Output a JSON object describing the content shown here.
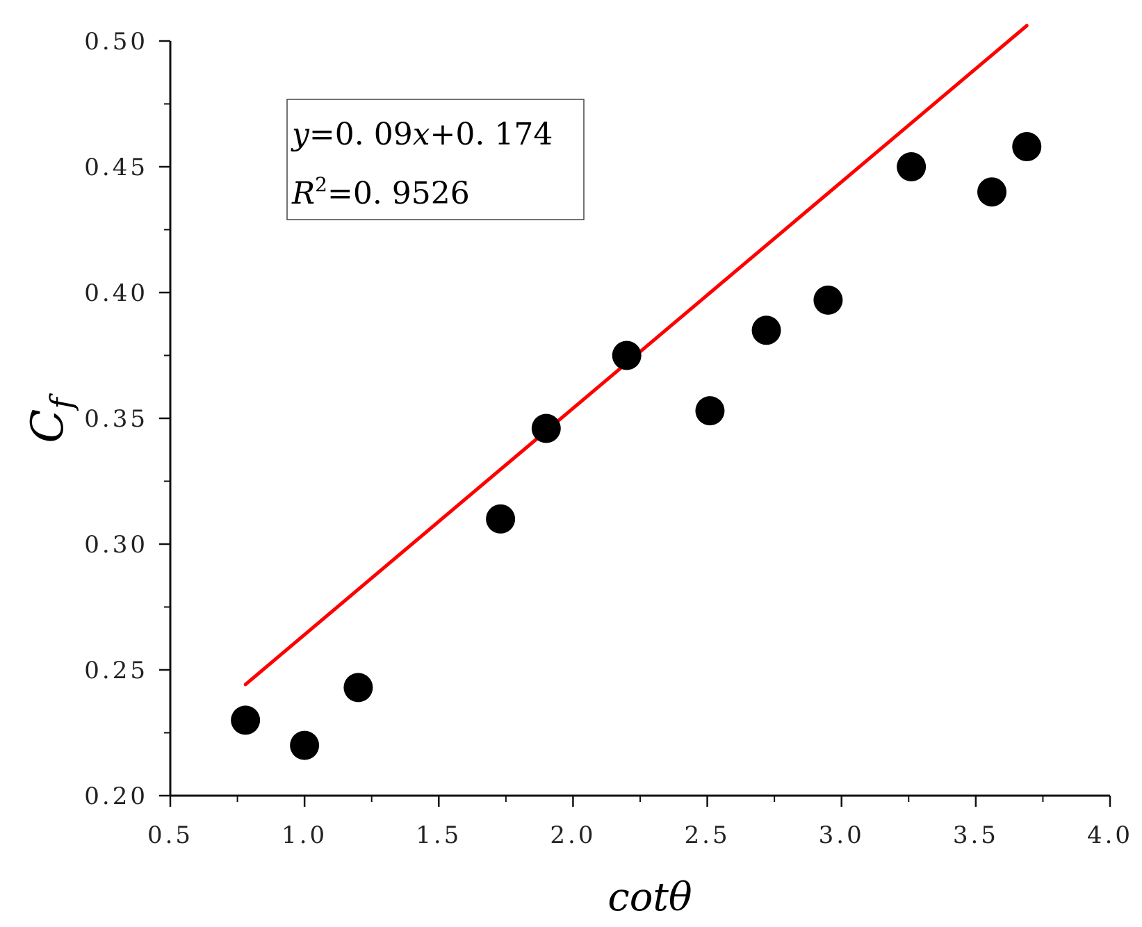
{
  "chart_data": {
    "type": "scatter",
    "xlabel": "cotθ",
    "ylabel": {
      "main": "C",
      "sub": "f"
    },
    "xlim": [
      0.5,
      4.0
    ],
    "ylim": [
      0.2,
      0.5
    ],
    "xticks": [
      "0.5",
      "1.0",
      "1.5",
      "2.0",
      "2.5",
      "3.0",
      "3.5",
      "4.0"
    ],
    "yticks": [
      "0.20",
      "0.25",
      "0.30",
      "0.35",
      "0.40",
      "0.45",
      "0.50"
    ],
    "xtick_values": [
      0.5,
      1.0,
      1.5,
      2.0,
      2.5,
      3.0,
      3.5,
      4.0
    ],
    "ytick_values": [
      0.2,
      0.25,
      0.3,
      0.35,
      0.4,
      0.45,
      0.5
    ],
    "series": [
      {
        "x": [
          0.78,
          1.0,
          1.2,
          1.73,
          1.9,
          2.2,
          2.51,
          2.72,
          2.95,
          3.26,
          3.56,
          3.69
        ],
        "y": [
          0.23,
          0.22,
          0.243,
          0.31,
          0.346,
          0.375,
          0.353,
          0.385,
          0.397,
          0.45,
          0.44,
          0.458
        ],
        "color": "#000000"
      }
    ],
    "fit": {
      "slope": 0.09,
      "intercept": 0.174,
      "x_range": [
        0.78,
        3.69
      ],
      "color": "#ff0000"
    },
    "annotation": {
      "equation": {
        "y": "y",
        "eq1": "=0. 09",
        "x": "x",
        "eq2": "+0. 174"
      },
      "r2": {
        "r": "R",
        "sup": "2",
        "eq": "=0. 9526"
      }
    },
    "grid": false
  }
}
